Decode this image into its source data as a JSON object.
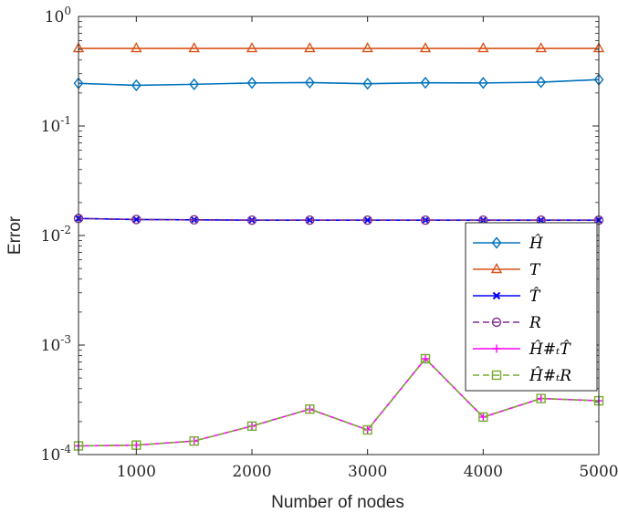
{
  "chart_data": {
    "type": "line",
    "xlabel": "Number of nodes",
    "ylabel": "Error",
    "xlim": [
      500,
      5000
    ],
    "ylim": [
      0.0001,
      1
    ],
    "yscale": "log",
    "grid": false,
    "legend_position": "right",
    "x": [
      500,
      1000,
      1500,
      2000,
      2500,
      3000,
      3500,
      4000,
      4500,
      5000
    ],
    "x_ticks": [
      1000,
      2000,
      3000,
      4000,
      5000
    ],
    "x_tick_labels": [
      "1000",
      "2000",
      "3000",
      "4000",
      "5000"
    ],
    "y_ticks": [
      0.0001,
      0.001,
      0.01,
      0.1,
      1
    ],
    "y_tick_exponents": [
      "-4",
      "-3",
      "-2",
      "-1",
      "0"
    ],
    "y_tick_base": "10",
    "series": [
      {
        "name": "Ĥ",
        "color": "#0072BD",
        "marker": "diamond",
        "dash": "solid",
        "values": [
          0.245,
          0.235,
          0.24,
          0.247,
          0.249,
          0.243,
          0.248,
          0.247,
          0.251,
          0.265
        ]
      },
      {
        "name": "T",
        "color": "#D95319",
        "marker": "triangle",
        "dash": "solid",
        "values": [
          0.51,
          0.51,
          0.51,
          0.51,
          0.51,
          0.51,
          0.51,
          0.51,
          0.51,
          0.51
        ]
      },
      {
        "name": "T̂",
        "color": "#0000FF",
        "marker": "x",
        "dash": "solid",
        "values": [
          0.0143,
          0.014,
          0.0139,
          0.0138,
          0.0138,
          0.0138,
          0.0138,
          0.0138,
          0.0138,
          0.0138
        ]
      },
      {
        "name": "R",
        "color": "#7E2F8E",
        "marker": "circle",
        "dash": "dashed",
        "values": [
          0.0143,
          0.014,
          0.0139,
          0.0138,
          0.0138,
          0.0138,
          0.0138,
          0.0138,
          0.0138,
          0.0138
        ]
      },
      {
        "name": "Ĥ#ₜT̂",
        "color": "#FF00FF",
        "marker": "plus",
        "dash": "solid",
        "values": [
          0.00012,
          0.000122,
          0.000133,
          0.000182,
          0.00026,
          0.000168,
          0.00075,
          0.00022,
          0.000325,
          0.00031
        ]
      },
      {
        "name": "Ĥ#ₜR",
        "color": "#77AC30",
        "marker": "square",
        "dash": "dashed",
        "values": [
          0.00012,
          0.000122,
          0.000133,
          0.000182,
          0.00026,
          0.000168,
          0.00075,
          0.00022,
          0.000325,
          0.00031
        ]
      }
    ]
  }
}
